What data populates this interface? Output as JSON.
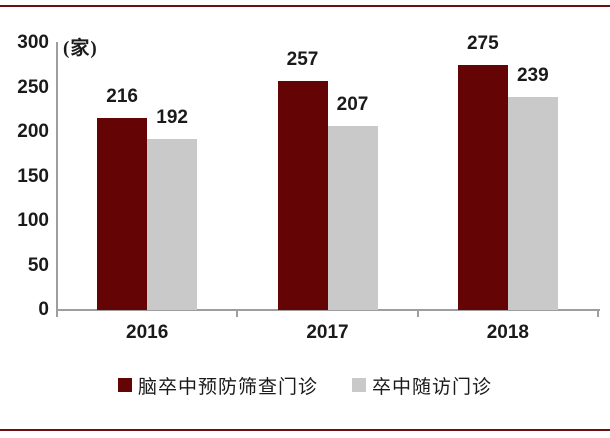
{
  "page": {
    "rule_color": "#6b1011",
    "axis_color": "#9e9e9e",
    "text_color": "#1a1a1a"
  },
  "chart_data": {
    "type": "bar",
    "unit_label": "(家)",
    "categories": [
      "2016",
      "2017",
      "2018"
    ],
    "series": [
      {
        "name": "脑卒中预防筛查门诊",
        "color": "#640404",
        "values": [
          216,
          257,
          275
        ]
      },
      {
        "name": "卒中随访门诊",
        "color": "#c9c9c9",
        "values": [
          192,
          207,
          239
        ]
      }
    ],
    "ylim": [
      0,
      300
    ],
    "yticks": [
      300,
      250,
      200,
      150,
      100,
      50,
      0
    ],
    "grid": false,
    "value_labels": true,
    "legend_position": "bottom"
  }
}
